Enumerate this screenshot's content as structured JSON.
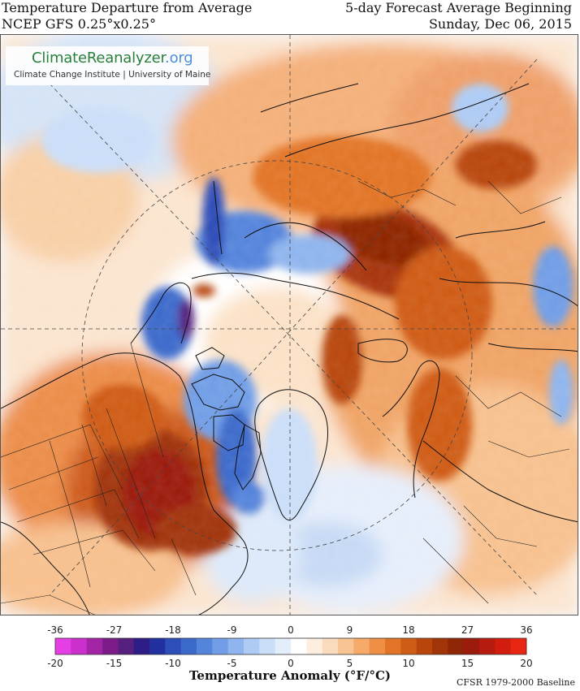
{
  "header": {
    "title_left": "Temperature Departure from Average",
    "subtitle_left": "NCEP GFS 0.25°x0.25°",
    "title_right": "5-day Forecast Average Beginning",
    "subtitle_right": "Sunday, Dec 06, 2015"
  },
  "logo": {
    "name_main": "ClimateReanalyzer",
    "name_suffix": ".org",
    "subtitle": "Climate Change Institute | University of Maine"
  },
  "legend": {
    "title": "Temperature Anomaly (°F/°C)",
    "baseline": "CFSR 1979-2000 Baseline",
    "fahrenheit_ticks": [
      "-36",
      "-27",
      "-18",
      "-9",
      "0",
      "9",
      "18",
      "27",
      "36"
    ],
    "celsius_ticks": [
      "-20",
      "-15",
      "-10",
      "-5",
      "0",
      "5",
      "10",
      "15",
      "20"
    ],
    "colors": [
      "#e43ee4",
      "#cc30cc",
      "#a424a6",
      "#7d1c88",
      "#56207f",
      "#2d1d86",
      "#22309f",
      "#2d4db8",
      "#3c6acb",
      "#5584db",
      "#719ee6",
      "#8fb5ee",
      "#aecbf4",
      "#cbdef8",
      "#e4eefb",
      "#ffffff",
      "#fdeee0",
      "#fbdbbd",
      "#f8c494",
      "#f5aa6a",
      "#ef8e45",
      "#e27427",
      "#cf5c16",
      "#b8460c",
      "#a13508",
      "#8e2606",
      "#9c1b0c",
      "#b71a0e",
      "#d21c10",
      "#e92513"
    ]
  },
  "map": {
    "projection": "polar-stereographic",
    "regions": [
      {
        "name": "siberia-warm",
        "anomaly_c": 13
      },
      {
        "name": "north-america-warm",
        "anomaly_c": 15
      },
      {
        "name": "greenland-cold",
        "anomaly_c": -6
      },
      {
        "name": "canadian-archipelago-cold",
        "anomaly_c": -9
      },
      {
        "name": "chukchi-cold",
        "anomaly_c": -12
      }
    ]
  }
}
